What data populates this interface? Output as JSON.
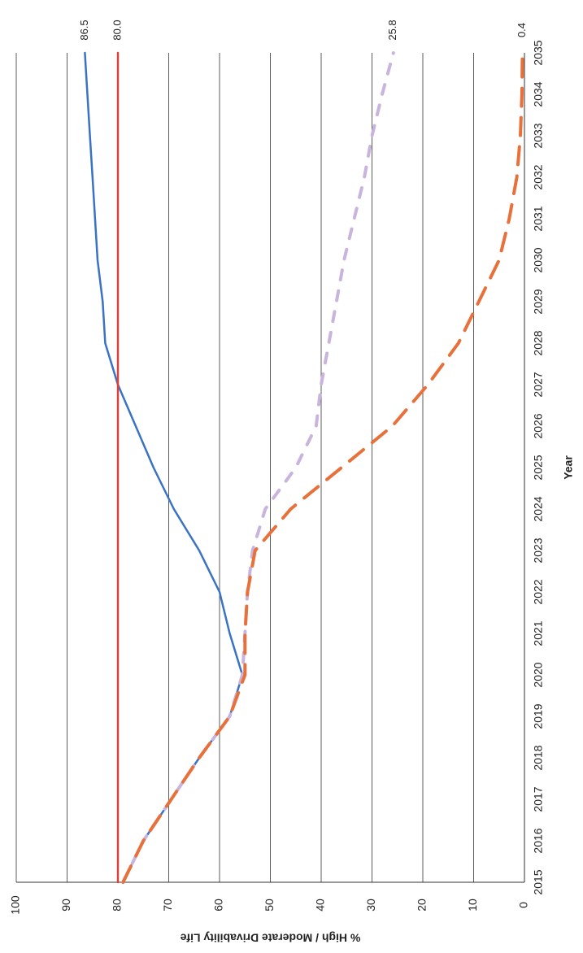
{
  "chart_data": {
    "type": "line",
    "orientation": "rotated-90-clockwise",
    "xlabel": "Year",
    "ylabel": "% High / Moderate Drivability Life",
    "x": [
      2015,
      2016,
      2017,
      2018,
      2019,
      2020,
      2021,
      2022,
      2023,
      2024,
      2025,
      2026,
      2027,
      2028,
      2029,
      2030,
      2031,
      2032,
      2033,
      2034,
      2035
    ],
    "ylim": [
      0,
      100
    ],
    "yticks": [
      0,
      10,
      20,
      30,
      40,
      50,
      60,
      70,
      80,
      90,
      100
    ],
    "grid": true,
    "series": [
      {
        "color": "#3a72c4",
        "style": "solid",
        "values": [
          79,
          75,
          69.5,
          64,
          58,
          55.5,
          58,
          60,
          64,
          69,
          73,
          76.5,
          80,
          82.5,
          83,
          84,
          84.5,
          85,
          85.5,
          86,
          86.5
        ],
        "end_label": "86.5"
      },
      {
        "color": "#d9413a",
        "style": "solid",
        "values": [
          80,
          80,
          80,
          80,
          80,
          80,
          80,
          80,
          80,
          80,
          80,
          80,
          80,
          80,
          80,
          80,
          80,
          80,
          80,
          80,
          80
        ],
        "end_label": "80.0"
      },
      {
        "color": "#c8b4dc",
        "style": "dashed",
        "values": [
          79,
          75,
          69.5,
          64,
          58,
          55.5,
          55,
          54.5,
          53.5,
          51,
          45,
          41,
          40,
          38.5,
          37,
          35.5,
          33.5,
          31.5,
          30,
          28,
          25.8
        ],
        "end_label": "25.8"
      },
      {
        "color": "#e8713b",
        "style": "dashed",
        "values": [
          79,
          75,
          69.5,
          64,
          58,
          55,
          55,
          54.5,
          53,
          46,
          36,
          26,
          19,
          13,
          9,
          5,
          3,
          1.5,
          0.8,
          0.5,
          0.4
        ],
        "end_label": "0.4"
      }
    ]
  }
}
